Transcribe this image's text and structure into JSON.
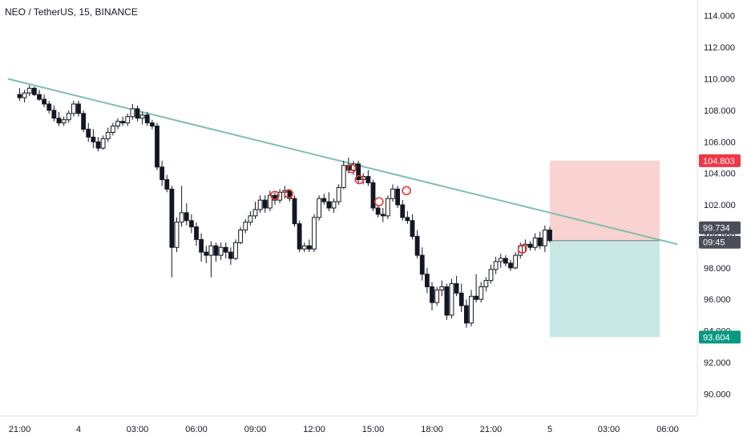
{
  "header": {
    "title": "NEO / TetherUS, 15, BINANCE"
  },
  "chart_data": {
    "type": "candlestick",
    "symbol": "NEO / TetherUS",
    "interval": "15",
    "exchange": "BINANCE",
    "ylim": [
      88.6,
      115.0
    ],
    "y_ticks": [
      "114.000",
      "112.000",
      "110.000",
      "108.000",
      "106.000",
      "104.000",
      "102.000",
      "100.000",
      "98.000",
      "96.000",
      "94.000",
      "92.000",
      "90.000"
    ],
    "x_ticks": [
      {
        "label": "21:00",
        "hours": 0
      },
      {
        "label": "4",
        "hours": 3
      },
      {
        "label": "03:00",
        "hours": 6
      },
      {
        "label": "06:00",
        "hours": 9
      },
      {
        "label": "09:00",
        "hours": 12
      },
      {
        "label": "12:00",
        "hours": 15
      },
      {
        "label": "15:00",
        "hours": 18
      },
      {
        "label": "18:00",
        "hours": 21
      },
      {
        "label": "21:00",
        "hours": 24
      },
      {
        "label": "5",
        "hours": 27
      },
      {
        "label": "03:00",
        "hours": 30
      },
      {
        "label": "06:00",
        "hours": 33
      }
    ],
    "trendline": {
      "from": {
        "hours": -0.6,
        "price": 110.0
      },
      "to": {
        "hours": 33.5,
        "price": 99.5
      },
      "color": "#7fbfb3"
    },
    "position": {
      "entry": 99.734,
      "stop": 104.803,
      "target": 93.604,
      "from_hours": 27.0,
      "to_hours": 32.6,
      "risk_color": "#f9d3d1",
      "reward_color": "#c8e8e5"
    },
    "markers": [
      {
        "hours": 13.0,
        "price": 102.6
      },
      {
        "hours": 13.7,
        "price": 102.7
      },
      {
        "hours": 16.9,
        "price": 104.3
      },
      {
        "hours": 17.3,
        "price": 103.6
      },
      {
        "hours": 18.3,
        "price": 102.2
      },
      {
        "hours": 19.7,
        "price": 102.9
      },
      {
        "hours": 25.6,
        "price": 99.2
      }
    ],
    "candles": [
      [
        0.0,
        109.0,
        109.4,
        108.6,
        108.8
      ],
      [
        0.25,
        108.8,
        109.3,
        108.5,
        109.1
      ],
      [
        0.5,
        109.1,
        109.6,
        108.9,
        109.4
      ],
      [
        0.75,
        109.4,
        109.5,
        108.9,
        109.0
      ],
      [
        1.0,
        109.0,
        109.3,
        108.6,
        108.7
      ],
      [
        1.25,
        108.7,
        109.0,
        108.2,
        108.4
      ],
      [
        1.5,
        108.4,
        108.6,
        107.8,
        108.0
      ],
      [
        1.75,
        108.0,
        108.3,
        107.3,
        107.5
      ],
      [
        2.0,
        107.5,
        107.9,
        107.0,
        107.2
      ],
      [
        2.25,
        107.2,
        107.6,
        107.0,
        107.4
      ],
      [
        2.5,
        107.4,
        108.0,
        107.2,
        107.8
      ],
      [
        2.75,
        107.8,
        108.6,
        107.6,
        108.4
      ],
      [
        3.0,
        108.4,
        108.6,
        107.6,
        107.8
      ],
      [
        3.25,
        107.8,
        108.0,
        106.6,
        106.8
      ],
      [
        3.5,
        106.8,
        107.2,
        106.0,
        106.3
      ],
      [
        3.75,
        106.3,
        106.8,
        105.6,
        106.0
      ],
      [
        4.0,
        106.0,
        106.3,
        105.4,
        105.6
      ],
      [
        4.25,
        105.6,
        106.4,
        105.5,
        106.2
      ],
      [
        4.5,
        106.2,
        106.9,
        106.0,
        106.6
      ],
      [
        4.75,
        106.6,
        107.2,
        106.4,
        107.0
      ],
      [
        5.0,
        107.0,
        107.5,
        106.8,
        107.3
      ],
      [
        5.25,
        107.3,
        107.6,
        107.0,
        107.2
      ],
      [
        5.5,
        107.2,
        107.8,
        107.0,
        107.6
      ],
      [
        5.75,
        107.6,
        108.4,
        107.4,
        108.1
      ],
      [
        6.0,
        108.1,
        108.3,
        107.3,
        107.5
      ],
      [
        6.25,
        107.5,
        107.9,
        107.1,
        107.7
      ],
      [
        6.5,
        107.7,
        107.9,
        107.0,
        107.2
      ],
      [
        6.75,
        107.2,
        107.4,
        106.8,
        107.0
      ],
      [
        7.0,
        107.0,
        107.2,
        104.2,
        104.4
      ],
      [
        7.25,
        104.4,
        104.8,
        103.2,
        103.6
      ],
      [
        7.5,
        103.6,
        103.9,
        102.8,
        103.0
      ],
      [
        7.75,
        103.0,
        103.2,
        97.4,
        99.3
      ],
      [
        8.0,
        99.3,
        101.2,
        99.0,
        100.9
      ],
      [
        8.25,
        100.9,
        103.2,
        100.6,
        101.5
      ],
      [
        8.5,
        101.5,
        102.1,
        100.7,
        101.0
      ],
      [
        8.75,
        101.0,
        101.4,
        100.2,
        100.6
      ],
      [
        9.0,
        100.6,
        100.9,
        99.4,
        99.8
      ],
      [
        9.25,
        99.8,
        100.2,
        98.4,
        99.0
      ],
      [
        9.5,
        99.0,
        99.4,
        98.3,
        98.8
      ],
      [
        9.75,
        98.8,
        99.7,
        97.4,
        99.4
      ],
      [
        10.0,
        99.4,
        99.6,
        98.4,
        98.8
      ],
      [
        10.25,
        98.8,
        99.6,
        98.5,
        99.3
      ],
      [
        10.5,
        99.3,
        99.6,
        98.6,
        99.0
      ],
      [
        10.75,
        99.0,
        99.3,
        98.2,
        98.6
      ],
      [
        11.0,
        98.6,
        99.8,
        98.5,
        99.6
      ],
      [
        11.25,
        99.6,
        100.6,
        99.5,
        100.4
      ],
      [
        11.5,
        100.4,
        101.1,
        100.2,
        100.9
      ],
      [
        11.75,
        100.9,
        101.6,
        100.7,
        101.3
      ],
      [
        12.0,
        101.3,
        102.2,
        101.1,
        101.7
      ],
      [
        12.25,
        101.7,
        102.6,
        101.5,
        102.3
      ],
      [
        12.5,
        102.3,
        102.6,
        101.5,
        101.8
      ],
      [
        12.75,
        101.8,
        102.9,
        101.6,
        102.6
      ],
      [
        13.0,
        102.6,
        102.8,
        102.0,
        102.3
      ],
      [
        13.25,
        102.3,
        103.0,
        102.1,
        102.8
      ],
      [
        13.5,
        102.8,
        103.2,
        102.4,
        102.9
      ],
      [
        13.75,
        102.9,
        103.0,
        102.2,
        102.4
      ],
      [
        14.0,
        102.4,
        102.6,
        100.6,
        100.8
      ],
      [
        14.25,
        100.8,
        101.0,
        99.0,
        99.2
      ],
      [
        14.5,
        99.2,
        99.6,
        99.0,
        99.4
      ],
      [
        14.75,
        99.4,
        99.8,
        99.0,
        99.2
      ],
      [
        15.0,
        99.2,
        101.4,
        99.0,
        101.2
      ],
      [
        15.25,
        101.2,
        102.6,
        101.0,
        102.4
      ],
      [
        15.5,
        102.4,
        102.7,
        102.0,
        102.2
      ],
      [
        15.75,
        102.2,
        102.8,
        101.6,
        101.8
      ],
      [
        16.0,
        101.8,
        102.4,
        101.5,
        102.2
      ],
      [
        16.25,
        102.2,
        103.3,
        102.0,
        103.1
      ],
      [
        16.5,
        103.1,
        104.8,
        103.0,
        104.5
      ],
      [
        16.75,
        104.5,
        105.0,
        104.0,
        104.2
      ],
      [
        17.0,
        104.2,
        104.8,
        103.9,
        104.6
      ],
      [
        17.25,
        104.6,
        104.8,
        103.4,
        103.6
      ],
      [
        17.5,
        103.6,
        104.0,
        103.3,
        103.8
      ],
      [
        17.75,
        103.8,
        104.2,
        103.2,
        103.4
      ],
      [
        18.0,
        103.4,
        103.6,
        101.6,
        101.8
      ],
      [
        18.25,
        101.8,
        102.0,
        101.2,
        101.4
      ],
      [
        18.5,
        101.4,
        101.8,
        100.9,
        101.3
      ],
      [
        18.75,
        101.3,
        102.6,
        101.1,
        102.4
      ],
      [
        19.0,
        102.4,
        103.3,
        102.2,
        103.0
      ],
      [
        19.25,
        103.0,
        103.2,
        101.8,
        102.0
      ],
      [
        19.5,
        102.0,
        102.3,
        101.0,
        101.2
      ],
      [
        19.75,
        101.2,
        101.6,
        100.8,
        101.0
      ],
      [
        20.0,
        101.0,
        101.4,
        99.8,
        100.0
      ],
      [
        20.25,
        100.0,
        100.4,
        98.6,
        98.8
      ],
      [
        20.5,
        98.8,
        99.3,
        97.2,
        97.6
      ],
      [
        20.75,
        97.6,
        98.0,
        96.4,
        96.8
      ],
      [
        21.0,
        96.8,
        97.1,
        95.3,
        95.8
      ],
      [
        21.25,
        95.8,
        96.8,
        95.6,
        96.6
      ],
      [
        21.5,
        96.6,
        97.2,
        96.2,
        96.8
      ],
      [
        21.75,
        96.8,
        97.0,
        94.7,
        95.0
      ],
      [
        22.0,
        95.0,
        97.3,
        94.8,
        97.0
      ],
      [
        22.25,
        97.0,
        97.5,
        96.2,
        96.4
      ],
      [
        22.5,
        96.4,
        97.0,
        95.2,
        95.6
      ],
      [
        22.75,
        95.6,
        96.0,
        94.2,
        94.5
      ],
      [
        23.0,
        94.5,
        96.6,
        94.3,
        96.2
      ],
      [
        23.25,
        96.2,
        97.6,
        95.8,
        96.0
      ],
      [
        23.5,
        96.0,
        97.1,
        95.8,
        96.8
      ],
      [
        23.75,
        96.8,
        97.4,
        96.5,
        97.2
      ],
      [
        24.0,
        97.2,
        98.2,
        97.0,
        97.9
      ],
      [
        24.25,
        97.9,
        98.7,
        97.6,
        98.4
      ],
      [
        24.5,
        98.4,
        98.9,
        98.0,
        98.6
      ],
      [
        24.75,
        98.6,
        98.8,
        98.1,
        98.3
      ],
      [
        25.0,
        98.3,
        98.5,
        97.8,
        98.0
      ],
      [
        25.25,
        98.0,
        99.0,
        97.9,
        98.8
      ],
      [
        25.5,
        98.8,
        99.6,
        98.6,
        99.4
      ],
      [
        25.75,
        99.4,
        99.8,
        99.0,
        99.5
      ],
      [
        26.0,
        99.5,
        99.7,
        99.1,
        99.3
      ],
      [
        26.25,
        99.3,
        100.2,
        99.1,
        99.9
      ],
      [
        26.5,
        99.9,
        100.3,
        99.2,
        99.4
      ],
      [
        26.75,
        99.4,
        100.7,
        99.0,
        100.4
      ],
      [
        27.0,
        100.4,
        100.6,
        99.6,
        99.734
      ]
    ]
  },
  "price_badges": {
    "stop_label": "104.803",
    "current_label": "99.734",
    "countdown_label": "09:45",
    "target_label": "93.604"
  }
}
